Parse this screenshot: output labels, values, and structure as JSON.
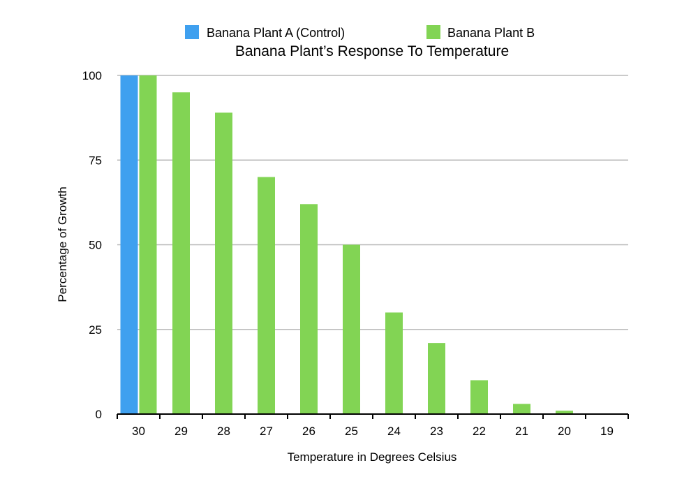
{
  "chart_data": {
    "type": "bar",
    "title": "Banana Plant’s Response To Temperature",
    "xlabel": "Temperature in Degrees Celsius",
    "ylabel": "Percentage of Growth",
    "categories": [
      "30",
      "29",
      "28",
      "27",
      "26",
      "25",
      "24",
      "23",
      "22",
      "21",
      "20",
      "19"
    ],
    "series": [
      {
        "name": "Banana Plant A (Control)",
        "color": "#3fa0ef",
        "values": [
          100,
          null,
          null,
          null,
          null,
          null,
          null,
          null,
          null,
          null,
          null,
          null
        ]
      },
      {
        "name": "Banana Plant B",
        "color": "#82d454",
        "values": [
          100,
          95,
          89,
          70,
          62,
          50,
          30,
          21,
          10,
          3,
          1,
          0
        ]
      }
    ],
    "ylim": [
      0,
      100
    ],
    "yticks": [
      0,
      25,
      50,
      75,
      100
    ],
    "grid": true,
    "legend_position": "top"
  }
}
